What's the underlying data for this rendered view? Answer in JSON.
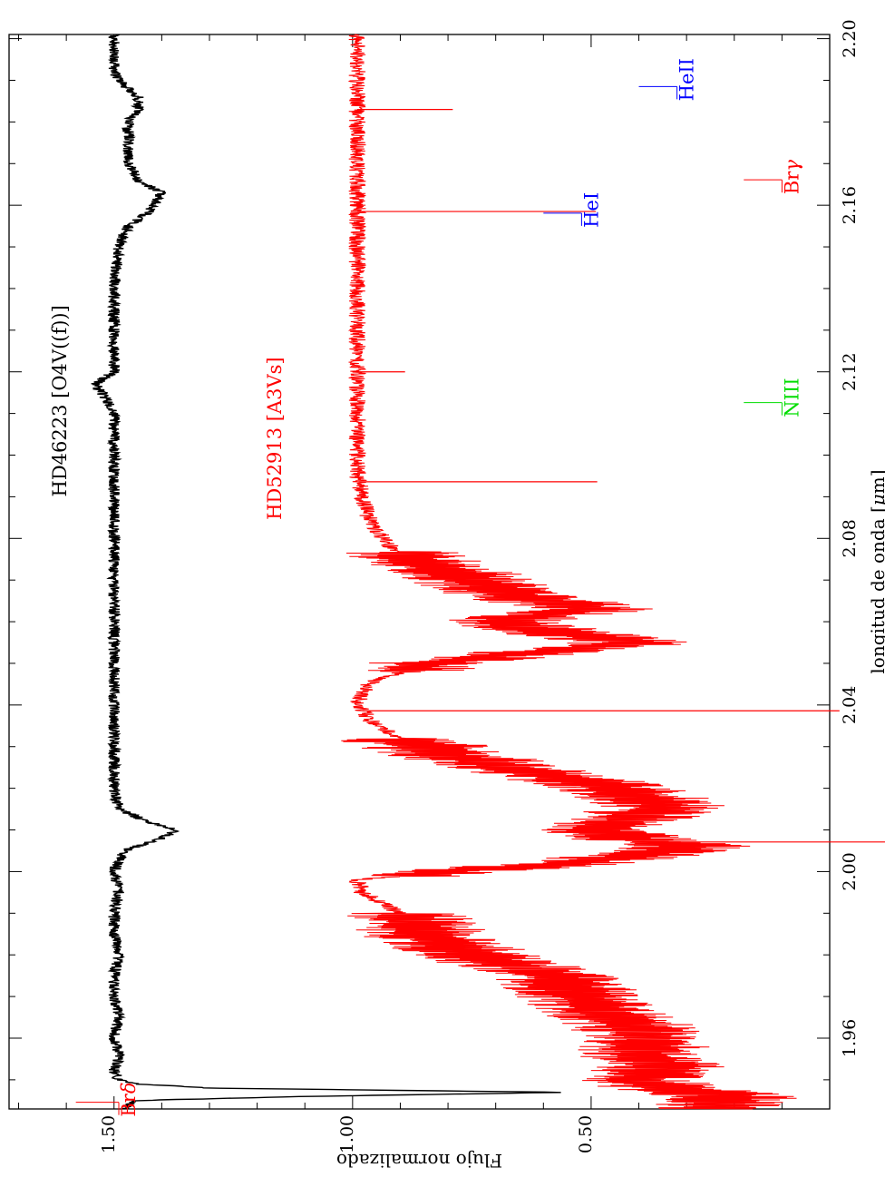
{
  "chart_data": {
    "type": "line",
    "orientation": "rotated-90",
    "xlabel_text": "longitud de onda [",
    "xlabel_mu": "μ",
    "xlabel_end": "m]",
    "ylabel": "Flujo normalizado",
    "xlim": [
      1.943,
      2.201
    ],
    "ylim": [
      0.0,
      1.72
    ],
    "x_major_ticks": [
      1.96,
      2.0,
      2.04,
      2.08,
      2.12,
      2.16,
      2.2
    ],
    "x_tick_labels": [
      "1.96",
      "2.00",
      "2.04",
      "2.08",
      "2.12",
      "2.16",
      "2.20"
    ],
    "x_minor_step": 0.01,
    "y_major_ticks": [
      0.5,
      1.0,
      1.5
    ],
    "y_tick_labels": [
      "0.50",
      "1.00",
      "1.50"
    ],
    "y_minor_step": 0.1,
    "grid": false,
    "colors": {
      "star_o": "#000000",
      "star_a": "#ff0000",
      "hei": "#0000ff",
      "heii": "#0000ff",
      "niii": "#00dd00",
      "brg": "#ff0000",
      "brd": "#ff0000"
    },
    "series": [
      {
        "name": "HD46223 [O4V((f))]",
        "color": "#000000",
        "x": [
          1.943,
          1.945,
          1.946,
          1.947,
          1.948,
          1.949,
          1.95,
          1.952,
          1.956,
          1.96,
          1.965,
          1.97,
          1.975,
          1.98,
          1.985,
          1.99,
          1.995,
          2.0,
          2.005,
          2.008,
          2.01,
          2.012,
          2.015,
          2.02,
          2.03,
          2.04,
          2.05,
          2.06,
          2.07,
          2.08,
          2.09,
          2.1,
          2.11,
          2.114,
          2.117,
          2.12,
          2.13,
          2.14,
          2.15,
          2.155,
          2.158,
          2.161,
          2.163,
          2.166,
          2.17,
          2.175,
          2.18,
          2.183,
          2.186,
          2.188,
          2.19,
          2.192,
          2.195,
          2.2
        ],
        "y": [
          1.48,
          1.46,
          1.1,
          0.55,
          1.3,
          1.45,
          1.49,
          1.5,
          1.49,
          1.5,
          1.49,
          1.5,
          1.5,
          1.49,
          1.5,
          1.5,
          1.49,
          1.5,
          1.48,
          1.4,
          1.37,
          1.43,
          1.49,
          1.5,
          1.5,
          1.5,
          1.5,
          1.5,
          1.5,
          1.5,
          1.5,
          1.5,
          1.5,
          1.52,
          1.54,
          1.5,
          1.5,
          1.5,
          1.49,
          1.47,
          1.43,
          1.41,
          1.4,
          1.45,
          1.47,
          1.47,
          1.47,
          1.45,
          1.45,
          1.47,
          1.49,
          1.5,
          1.5,
          1.5
        ]
      },
      {
        "name": "HD52913 [A3Vs]",
        "color": "#ff0000",
        "x": [
          1.943,
          1.946,
          1.948,
          1.95,
          1.953,
          1.956,
          1.96,
          1.965,
          1.97,
          1.975,
          1.98,
          1.985,
          1.99,
          1.995,
          1.998,
          2.0,
          2.002,
          2.004,
          2.006,
          2.008,
          2.01,
          2.013,
          2.016,
          2.02,
          2.024,
          2.028,
          2.032,
          2.036,
          2.04,
          2.045,
          2.05,
          2.053,
          2.055,
          2.057,
          2.06,
          2.063,
          2.066,
          2.07,
          2.074,
          2.078,
          2.082,
          2.086,
          2.09,
          2.095,
          2.1,
          2.11,
          2.12,
          2.13,
          2.14,
          2.15,
          2.16,
          2.17,
          2.18,
          2.19,
          2.2
        ],
        "y": [
          0.25,
          0.2,
          0.35,
          0.4,
          0.35,
          0.4,
          0.38,
          0.45,
          0.52,
          0.58,
          0.75,
          0.85,
          0.9,
          0.98,
          0.99,
          0.8,
          0.55,
          0.4,
          0.3,
          0.42,
          0.5,
          0.4,
          0.35,
          0.45,
          0.62,
          0.8,
          0.9,
          0.96,
          0.99,
          0.97,
          0.85,
          0.6,
          0.4,
          0.55,
          0.7,
          0.5,
          0.65,
          0.75,
          0.85,
          0.92,
          0.95,
          0.97,
          0.98,
          0.99,
          0.99,
          0.99,
          0.99,
          0.99,
          0.99,
          0.99,
          0.99,
          0.99,
          0.99,
          0.99,
          0.99
        ]
      }
    ],
    "absorption_spikes": [
      {
        "series": 1,
        "x": 2.0386,
        "depth": 1.0
      },
      {
        "series": 1,
        "x": 2.0936,
        "depth": 0.5
      },
      {
        "series": 1,
        "x": 2.1585,
        "depth": 0.5
      },
      {
        "series": 1,
        "x": 2.0071,
        "depth": 0.7
      },
      {
        "series": 1,
        "x": 2.183,
        "depth": 0.2
      },
      {
        "series": 1,
        "x": 2.12,
        "depth": 0.1
      }
    ],
    "line_markers": [
      {
        "label": "Br",
        "label_greek": "δ",
        "x": 1.9446,
        "y0": 1.58,
        "y1": 1.49,
        "color": "#ff0000"
      },
      {
        "label": "Br",
        "label_greek": "γ",
        "x": 2.1661,
        "y0": 0.18,
        "y1": 0.1,
        "color": "#ff0000"
      },
      {
        "label": "HeI",
        "label_greek": "",
        "x": 2.1126,
        "y0": 0.18,
        "y1": 0.1,
        "color": "#00dd00",
        "text": "NIII"
      },
      {
        "label": "HeI",
        "label_greek": "",
        "x": 2.1581,
        "y0": 0.6,
        "y1": 0.52,
        "color": "#0000ff"
      },
      {
        "label": "HeII",
        "label_greek": "",
        "x": 2.1885,
        "y0": 0.4,
        "y1": 0.32,
        "color": "#0000ff"
      }
    ],
    "annotations": [
      {
        "text": "HD46223 [O4V((f))]",
        "x": 2.113,
        "y": 1.6,
        "color": "#000000"
      },
      {
        "text": "HD52913 [A3Vs]",
        "x": 2.104,
        "y": 1.15,
        "color": "#ff0000"
      }
    ]
  }
}
